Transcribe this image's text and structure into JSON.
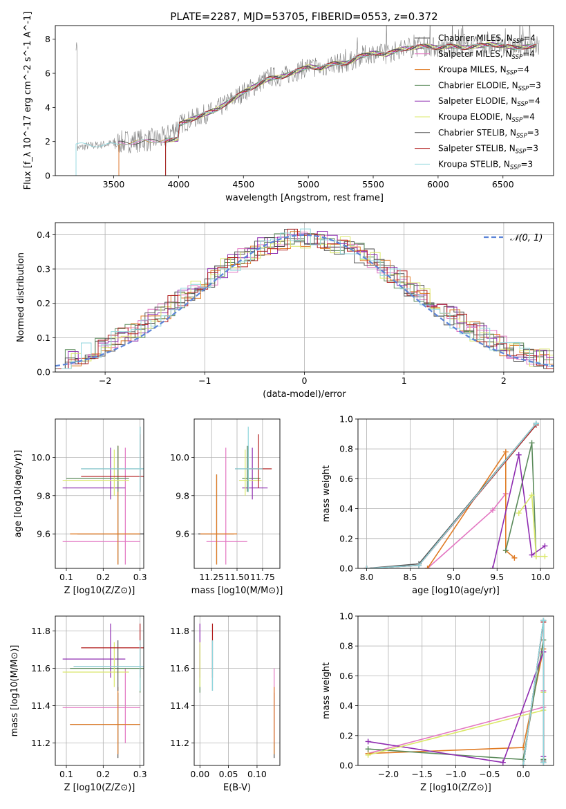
{
  "title": "PLATE=2287, MJD=53705, FIBERID=0553, z=0.372",
  "series": [
    {
      "name": "Chabrier MILES",
      "nssp": "4",
      "color": "#4a4a4a"
    },
    {
      "name": "Salpeter MILES",
      "nssp": "4",
      "color": "#e377c2"
    },
    {
      "name": "Kroupa MILES",
      "nssp": "4",
      "color": "#e07b24"
    },
    {
      "name": "Chabrier ELODIE",
      "nssp": "3",
      "color": "#5a8a5a"
    },
    {
      "name": "Salpeter ELODIE",
      "nssp": "4",
      "color": "#8e2bb0"
    },
    {
      "name": "Kroupa ELODIE",
      "nssp": "4",
      "color": "#dbe86a"
    },
    {
      "name": "Chabrier STELIB",
      "nssp": "3",
      "color": "#555555"
    },
    {
      "name": "Salpeter STELIB",
      "nssp": "3",
      "color": "#b01c1c"
    },
    {
      "name": "Kroupa STELIB",
      "nssp": "3",
      "color": "#8fd6dd"
    }
  ],
  "chart_data": [
    {
      "id": "spectrum",
      "type": "line",
      "xlabel": "wavelength [Angstrom, rest frame]",
      "ylabel": "Flux [f_λ 10^-17 erg cm^-2 s^-1 A^-1]",
      "xlim": [
        3050,
        6890
      ],
      "ylim": [
        0,
        8.8
      ],
      "xticks": [
        3500,
        4000,
        4500,
        5000,
        5500,
        6000,
        6500
      ],
      "yticks": [
        0,
        2,
        4,
        6,
        8
      ],
      "legend": "top-right",
      "observed_flux": {
        "x": [
          3220,
          3300,
          3400,
          3500,
          3600,
          3700,
          3800,
          3900,
          4000,
          4100,
          4200,
          4300,
          4400,
          4500,
          4600,
          4700,
          4800,
          4900,
          5000,
          5100,
          5200,
          5300,
          5400,
          5500,
          5600,
          5700,
          5800,
          5900,
          6000,
          6100,
          6200,
          6300,
          6400,
          6500,
          6600,
          6750
        ],
        "y": [
          1.6,
          1.75,
          1.8,
          1.9,
          2.0,
          2.05,
          2.1,
          2.2,
          3.0,
          3.3,
          3.6,
          3.9,
          4.4,
          4.9,
          5.3,
          5.8,
          5.8,
          6.1,
          6.4,
          6.3,
          6.6,
          6.6,
          7.0,
          7.2,
          7.1,
          7.4,
          7.5,
          7.6,
          7.5,
          7.6,
          7.5,
          7.6,
          7.7,
          7.6,
          7.5,
          7.6
        ]
      },
      "model_flux": {
        "x": [
          4000,
          4100,
          4200,
          4300,
          4400,
          4500,
          4600,
          4700,
          4800,
          4900,
          5000,
          5100,
          5200,
          5300,
          5400,
          5500,
          5600,
          5700,
          5800,
          5900,
          6000,
          6100,
          6200,
          6300,
          6400,
          6500,
          6600,
          6750
        ],
        "y": [
          3.0,
          3.3,
          3.6,
          3.9,
          4.4,
          4.9,
          5.3,
          5.7,
          5.8,
          6.1,
          6.4,
          6.3,
          6.6,
          6.6,
          7.0,
          7.2,
          7.1,
          7.4,
          7.5,
          7.6,
          7.5,
          7.6,
          7.5,
          7.6,
          7.7,
          7.6,
          7.5,
          7.6
        ]
      }
    },
    {
      "id": "residuals",
      "type": "line",
      "xlabel": "(data-model)/error",
      "ylabel": "Normed distribution",
      "xlim": [
        -2.5,
        2.5
      ],
      "ylim": [
        0,
        0.435
      ],
      "xticks": [
        -2,
        -1,
        0,
        1,
        2
      ],
      "yticks": [
        0.0,
        0.1,
        0.2,
        0.3,
        0.4
      ],
      "legend": "top-right",
      "reference_label": "𝒩(0, 1)",
      "reference_color": "#5b84d8"
    },
    {
      "id": "age-vs-Z",
      "type": "scatter",
      "xlabel": "Z [log10(Z/Z⊙)]",
      "ylabel": "age [log10(age/yr)]",
      "xlim": [
        0.07,
        0.31
      ],
      "ylim": [
        9.42,
        10.2
      ],
      "xticks": [
        0.1,
        0.2,
        0.3
      ],
      "yticks": [
        9.6,
        9.8,
        10.0
      ],
      "points": [
        {
          "series": 0,
          "x": 0.24,
          "y": 9.6,
          "xerr": [
            0.13,
            0.31
          ],
          "yerr": [
            9.44,
            10.06
          ]
        },
        {
          "series": 1,
          "x": 0.26,
          "y": 9.56,
          "xerr": [
            0.09,
            0.3
          ],
          "yerr": [
            9.44,
            10.05
          ]
        },
        {
          "series": 2,
          "x": 0.24,
          "y": 9.6,
          "xerr": [
            0.11,
            0.3
          ],
          "yerr": [
            9.44,
            10.06
          ]
        },
        {
          "series": 3,
          "x": 0.24,
          "y": 9.89,
          "xerr": [
            0.1,
            0.27
          ],
          "yerr": [
            9.82,
            10.06
          ]
        },
        {
          "series": 4,
          "x": 0.22,
          "y": 9.84,
          "xerr": [
            0.09,
            0.26
          ],
          "yerr": [
            9.78,
            10.05
          ]
        },
        {
          "series": 5,
          "x": 0.23,
          "y": 9.88,
          "xerr": [
            0.09,
            0.27
          ],
          "yerr": [
            9.8,
            10.04
          ]
        },
        {
          "series": 6,
          "x": 0.3,
          "y": 9.94,
          "xerr": [
            0.14,
            0.31
          ],
          "yerr": [
            9.82,
            10.16
          ]
        },
        {
          "series": 7,
          "x": 0.3,
          "y": 9.9,
          "xerr": [
            0.14,
            0.31
          ],
          "yerr": [
            9.82,
            10.12
          ]
        },
        {
          "series": 8,
          "x": 0.3,
          "y": 9.94,
          "xerr": [
            0.14,
            0.31
          ],
          "yerr": [
            9.82,
            10.16
          ]
        }
      ]
    },
    {
      "id": "age-vs-mass",
      "type": "scatter",
      "xlabel": "mass [log10(M/M⊙)]",
      "ylabel": "",
      "xlim": [
        11.08,
        11.92
      ],
      "ylim": [
        9.42,
        10.2
      ],
      "xticks": [
        11.25,
        11.5,
        11.75
      ],
      "yticks": [
        9.6,
        9.8,
        10.0
      ],
      "points": [
        {
          "series": 0,
          "x": 11.3,
          "y": 9.6,
          "xerr": [
            11.12,
            11.47
          ],
          "yerr": [
            9.44,
            9.91
          ]
        },
        {
          "series": 1,
          "x": 11.39,
          "y": 9.56,
          "xerr": [
            11.2,
            11.6
          ],
          "yerr": [
            9.44,
            10.05
          ]
        },
        {
          "series": 2,
          "x": 11.3,
          "y": 9.6,
          "xerr": [
            11.14,
            11.5
          ],
          "yerr": [
            9.44,
            9.91
          ]
        },
        {
          "series": 3,
          "x": 11.6,
          "y": 9.89,
          "xerr": [
            11.55,
            11.73
          ],
          "yerr": [
            9.82,
            10.06
          ]
        },
        {
          "series": 4,
          "x": 11.65,
          "y": 9.84,
          "xerr": [
            11.55,
            11.8
          ],
          "yerr": [
            9.78,
            10.05
          ]
        },
        {
          "series": 5,
          "x": 11.58,
          "y": 9.88,
          "xerr": [
            11.52,
            11.74
          ],
          "yerr": [
            9.8,
            10.04
          ]
        },
        {
          "series": 6,
          "x": 11.61,
          "y": 9.94,
          "xerr": [
            11.48,
            11.75
          ],
          "yerr": [
            9.82,
            10.06
          ]
        },
        {
          "series": 7,
          "x": 11.71,
          "y": 9.94,
          "xerr": [
            11.6,
            11.84
          ],
          "yerr": [
            9.84,
            10.12
          ]
        },
        {
          "series": 8,
          "x": 11.61,
          "y": 9.94,
          "xerr": [
            11.48,
            11.75
          ],
          "yerr": [
            9.82,
            10.16
          ]
        }
      ]
    },
    {
      "id": "age-weights",
      "type": "line",
      "xlabel": "age [log10(age/yr)]",
      "ylabel": "mass weight",
      "xlim": [
        7.9,
        10.15
      ],
      "ylim": [
        0,
        1
      ],
      "xticks": [
        8.0,
        8.5,
        9.0,
        9.5,
        10.0
      ],
      "yticks": [
        0.0,
        0.2,
        0.4,
        0.6,
        0.8,
        1.0
      ],
      "series": [
        {
          "series": 0,
          "x": [
            8.0,
            8.6,
            9.95
          ],
          "y": [
            0.0,
            0.02,
            0.97
          ]
        },
        {
          "series": 1,
          "x": [
            8.7,
            9.45,
            9.6
          ],
          "y": [
            0.0,
            0.39,
            0.5
          ]
        },
        {
          "series": 2,
          "x": [
            8.7,
            9.6,
            9.6,
            9.7
          ],
          "y": [
            0.0,
            0.78,
            0.12,
            0.07
          ]
        },
        {
          "series": 3,
          "x": [
            9.6,
            9.9,
            9.95
          ],
          "y": [
            0.12,
            0.84,
            0.08
          ]
        },
        {
          "series": 4,
          "x": [
            9.45,
            9.75,
            9.9,
            10.05
          ],
          "y": [
            0.0,
            0.76,
            0.09,
            0.15
          ]
        },
        {
          "series": 5,
          "x": [
            9.75,
            9.9,
            9.95,
            10.05
          ],
          "y": [
            0.37,
            0.49,
            0.08,
            0.08
          ]
        },
        {
          "series": 6,
          "x": [
            8.0,
            8.6,
            9.95
          ],
          "y": [
            0.0,
            0.03,
            0.97
          ]
        },
        {
          "series": 7,
          "x": [
            8.0,
            8.6,
            9.95
          ],
          "y": [
            0.0,
            0.02,
            0.96
          ]
        },
        {
          "series": 8,
          "x": [
            8.0,
            8.6,
            9.95
          ],
          "y": [
            0.0,
            0.02,
            0.97
          ]
        }
      ]
    },
    {
      "id": "mass-vs-Z",
      "type": "scatter",
      "xlabel": "Z [log10(Z/Z⊙)]",
      "ylabel": "mass [log10(M/M⊙)]",
      "xlim": [
        0.07,
        0.31
      ],
      "ylim": [
        11.08,
        11.88
      ],
      "xticks": [
        0.1,
        0.2,
        0.3
      ],
      "yticks": [
        11.2,
        11.4,
        11.6,
        11.8
      ],
      "points": [
        {
          "series": 0,
          "x": 0.24,
          "y": 11.3,
          "xerr": [
            0.11,
            0.3
          ],
          "yerr": [
            11.12,
            11.47
          ]
        },
        {
          "series": 1,
          "x": 0.26,
          "y": 11.39,
          "xerr": [
            0.09,
            0.3
          ],
          "yerr": [
            11.2,
            11.6
          ]
        },
        {
          "series": 2,
          "x": 0.24,
          "y": 11.3,
          "xerr": [
            0.11,
            0.3
          ],
          "yerr": [
            11.14,
            11.5
          ]
        },
        {
          "series": 3,
          "x": 0.3,
          "y": 11.6,
          "xerr": [
            0.11,
            0.31
          ],
          "yerr": [
            11.47,
            11.73
          ]
        },
        {
          "series": 4,
          "x": 0.22,
          "y": 11.65,
          "xerr": [
            0.09,
            0.26
          ],
          "yerr": [
            11.55,
            11.84
          ]
        },
        {
          "series": 5,
          "x": 0.23,
          "y": 11.58,
          "xerr": [
            0.09,
            0.27
          ],
          "yerr": [
            11.5,
            11.74
          ]
        },
        {
          "series": 6,
          "x": 0.24,
          "y": 11.61,
          "xerr": [
            0.12,
            0.3
          ],
          "yerr": [
            11.48,
            11.75
          ]
        },
        {
          "series": 7,
          "x": 0.3,
          "y": 11.71,
          "xerr": [
            0.14,
            0.31
          ],
          "yerr": [
            11.55,
            11.84
          ]
        },
        {
          "series": 8,
          "x": 0.3,
          "y": 11.61,
          "xerr": [
            0.12,
            0.31
          ],
          "yerr": [
            11.48,
            11.75
          ]
        }
      ]
    },
    {
      "id": "mass-vs-EBV",
      "type": "scatter",
      "xlabel": "E(B-V)",
      "ylabel": "",
      "xlim": [
        -0.01,
        0.14
      ],
      "ylim": [
        11.08,
        11.88
      ],
      "xticks": [
        0.0,
        0.05,
        0.1
      ],
      "yticks": [
        11.2,
        11.4,
        11.6,
        11.8
      ],
      "points": [
        {
          "series": 0,
          "x": 0.13,
          "y": 11.3,
          "yerr": [
            11.12,
            11.47
          ]
        },
        {
          "series": 1,
          "x": 0.13,
          "y": 11.39,
          "yerr": [
            11.2,
            11.6
          ]
        },
        {
          "series": 2,
          "x": 0.13,
          "y": 11.3,
          "yerr": [
            11.14,
            11.5
          ]
        },
        {
          "series": 3,
          "x": 0.0,
          "y": 11.6,
          "yerr": [
            11.47,
            11.73
          ]
        },
        {
          "series": 4,
          "x": 0.0,
          "y": 11.65,
          "yerr": [
            11.55,
            11.84
          ]
        },
        {
          "series": 5,
          "x": 0.0,
          "y": 11.58,
          "yerr": [
            11.5,
            11.74
          ]
        },
        {
          "series": 6,
          "x": 0.022,
          "y": 11.61,
          "yerr": [
            11.48,
            11.75
          ]
        },
        {
          "series": 7,
          "x": 0.022,
          "y": 11.71,
          "yerr": [
            11.55,
            11.84
          ]
        },
        {
          "series": 8,
          "x": 0.022,
          "y": 11.61,
          "yerr": [
            11.48,
            11.75
          ]
        }
      ]
    },
    {
      "id": "Z-weights",
      "type": "line",
      "xlabel": "Z [log10(Z/Z⊙)]",
      "ylabel": "mass weight",
      "xlim": [
        -2.45,
        0.45
      ],
      "ylim": [
        0,
        1
      ],
      "xticks": [
        -2.0,
        -1.5,
        -1.0,
        -0.5,
        0.0
      ],
      "yticks": [
        0.0,
        0.2,
        0.4,
        0.6,
        0.8,
        1.0
      ],
      "series": [
        {
          "series": 0,
          "x": [
            0.0,
            0.3,
            0.3
          ],
          "y": [
            0.0,
            0.97,
            0.02
          ]
        },
        {
          "series": 1,
          "x": [
            -2.3,
            0.3,
            0.3
          ],
          "y": [
            0.08,
            0.39,
            0.5
          ]
        },
        {
          "series": 2,
          "x": [
            -2.3,
            0.0,
            0.3
          ],
          "y": [
            0.08,
            0.12,
            0.78
          ]
        },
        {
          "series": 3,
          "x": [
            -2.3,
            0.0,
            0.3,
            0.3
          ],
          "y": [
            0.11,
            0.04,
            0.84,
            0.04
          ]
        },
        {
          "series": 4,
          "x": [
            -2.3,
            -0.3,
            0.3,
            0.3
          ],
          "y": [
            0.16,
            0.02,
            0.76,
            0.06
          ]
        },
        {
          "series": 5,
          "x": [
            -2.3,
            0.3,
            0.3
          ],
          "y": [
            0.07,
            0.37,
            0.49
          ]
        },
        {
          "series": 6,
          "x": [
            0.0,
            0.3,
            0.3
          ],
          "y": [
            0.0,
            0.97,
            0.03
          ]
        },
        {
          "series": 7,
          "x": [
            0.0,
            0.3,
            0.3
          ],
          "y": [
            0.0,
            0.96,
            0.02
          ]
        },
        {
          "series": 8,
          "x": [
            0.0,
            0.3,
            0.3
          ],
          "y": [
            0.0,
            0.97,
            0.02
          ]
        }
      ]
    }
  ]
}
